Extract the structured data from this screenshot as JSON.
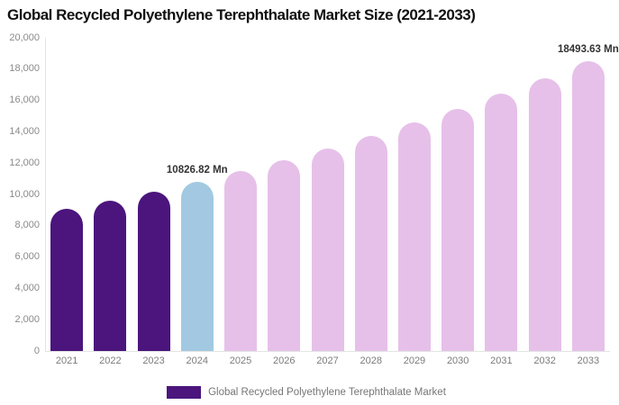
{
  "header": {
    "title": "Global Recycled Polyethylene Terephthalate Market Size (2021-2033)"
  },
  "legend": {
    "label": "Global Recycled Polyethylene Terephthalate Market",
    "swatch_color": "#4B157D",
    "position": "bottom"
  },
  "colors": {
    "background": "#ffffff",
    "title_text": "#111111",
    "axis_line": "#e4e4e4",
    "tick_label": "#8a8a8a",
    "annotation_text": "#333333",
    "legend_text": "#767676",
    "bar_historical_purple": "#4B157D",
    "bar_current_blue": "#A2C9E1",
    "bar_forecast_pink": "#E6C0E9"
  },
  "chart_data": {
    "type": "bar",
    "title": "Global Recycled Polyethylene Terephthalate Market Size (2021-2033)",
    "unit": "Mn",
    "categories": [
      "2021",
      "2022",
      "2023",
      "2024",
      "2025",
      "2026",
      "2027",
      "2028",
      "2029",
      "2030",
      "2031",
      "2032",
      "2033"
    ],
    "series": [
      {
        "name": "Global Recycled Polyethylene Terephthalate Market",
        "values": [
          9057,
          9612,
          10201,
          10826.82,
          11490,
          12195,
          12942,
          13736,
          14578,
          15471,
          16419,
          17426,
          18493.63
        ]
      }
    ],
    "bar_colors": [
      "#4B157D",
      "#4B157D",
      "#4B157D",
      "#A2C9E1",
      "#E6C0E9",
      "#E6C0E9",
      "#E6C0E9",
      "#E6C0E9",
      "#E6C0E9",
      "#E6C0E9",
      "#E6C0E9",
      "#E6C0E9",
      "#E6C0E9"
    ],
    "labeled_points": [
      {
        "category": "2024",
        "value": 10826.82,
        "label": "10826.82 Mn"
      },
      {
        "category": "2033",
        "value": 18493.63,
        "label": "18493.63 Mn"
      }
    ],
    "ylim": [
      0,
      20000
    ],
    "ytick_step": 2000,
    "ytick_labels": [
      "0",
      "2,000",
      "4,000",
      "6,000",
      "8,000",
      "10,000",
      "12,000",
      "14,000",
      "16,000",
      "18,000",
      "20,000"
    ],
    "xlabel": "",
    "ylabel": "",
    "grid": "off",
    "legend_position": "bottom"
  }
}
